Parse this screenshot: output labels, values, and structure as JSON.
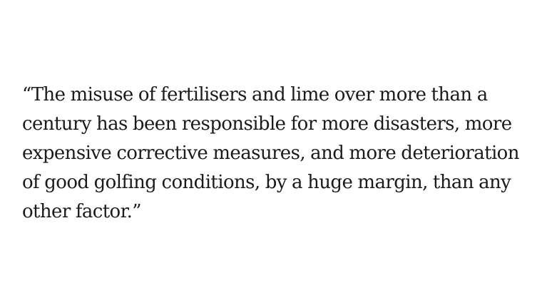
{
  "quote": {
    "lines": [
      "“The misuse of fertilisers and lime over more than a",
      "century has been responsible for more disasters, more",
      "expensive corrective measures, and more deterioration",
      "of good golfing conditions, by a huge margin, than any",
      "other factor.”"
    ]
  }
}
